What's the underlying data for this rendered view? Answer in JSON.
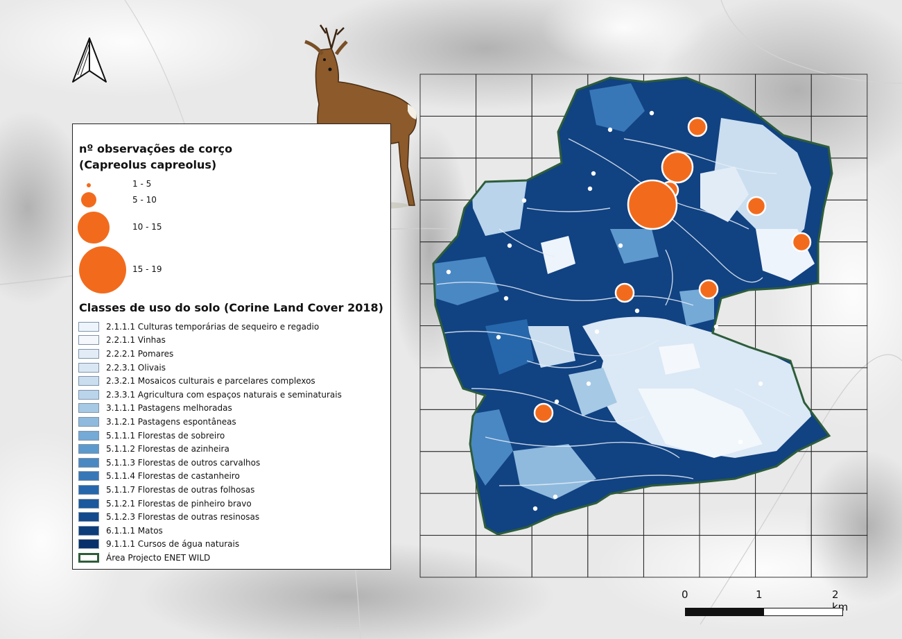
{
  "observations_legend": {
    "title_line1": "nº observações de corço",
    "title_line2": "(Capreolus capreolus)",
    "classes": [
      {
        "label": "1 - 5"
      },
      {
        "label": "5 - 10"
      },
      {
        "label": "10 - 15"
      },
      {
        "label": "15 - 19"
      }
    ],
    "marker_color": "#f26b1d"
  },
  "landcover_legend": {
    "title": "Classes de uso do solo (Corine Land Cover 2018)",
    "classes": [
      {
        "label": "2.1.1.1 Culturas temporárias de sequeiro e regadio",
        "color": "#eef4fb"
      },
      {
        "label": "2.2.1.1 Vinhas",
        "color": "#f4f8fc"
      },
      {
        "label": "2.2.2.1 Pomares",
        "color": "#e2ecf7"
      },
      {
        "label": "2.2.3.1 Olivais",
        "color": "#d9e7f4"
      },
      {
        "label": "2.3.2.1 Mosaicos culturais e parcelares complexos",
        "color": "#cadef0"
      },
      {
        "label": "2.3.3.1 Agricultura com espaços naturais e seminaturais",
        "color": "#b9d4eb"
      },
      {
        "label": "3.1.1.1 Pastagens melhoradas",
        "color": "#a6c9e5"
      },
      {
        "label": "3.1.2.1 Pastagens espontâneas",
        "color": "#8fbade"
      },
      {
        "label": "5.1.1.1 Florestas de sobreiro",
        "color": "#75a9d6"
      },
      {
        "label": "5.1.1.2 Florestas de azinheira",
        "color": "#5e99cd"
      },
      {
        "label": "5.1.1.3 Florestas de outros carvalhos",
        "color": "#4a88c3"
      },
      {
        "label": "5.1.1.4 Florestas de castanheiro",
        "color": "#3777b8"
      },
      {
        "label": "5.1.1.7 Florestas de outras folhosas",
        "color": "#2667ab"
      },
      {
        "label": "5.1.2.1 Florestas de pinheiro bravo",
        "color": "#1b589d"
      },
      {
        "label": "5.1.2.3 Florestas de outras resinosas",
        "color": "#134a8d"
      },
      {
        "label": "6.1.1.1 Matos",
        "color": "#0d3d7a"
      },
      {
        "label": "9.1.1.1 Cursos de água naturais",
        "color": "#08306b"
      }
    ],
    "study_area": {
      "label": "Área Projecto ENET WILD",
      "border_color": "#2e5d3a"
    }
  },
  "scalebar": {
    "labels": [
      "0",
      "1",
      "2 km"
    ]
  },
  "north_arrow": {
    "icon": "north-arrow-icon"
  },
  "illustration": {
    "icon": "roe-deer-illustration"
  }
}
